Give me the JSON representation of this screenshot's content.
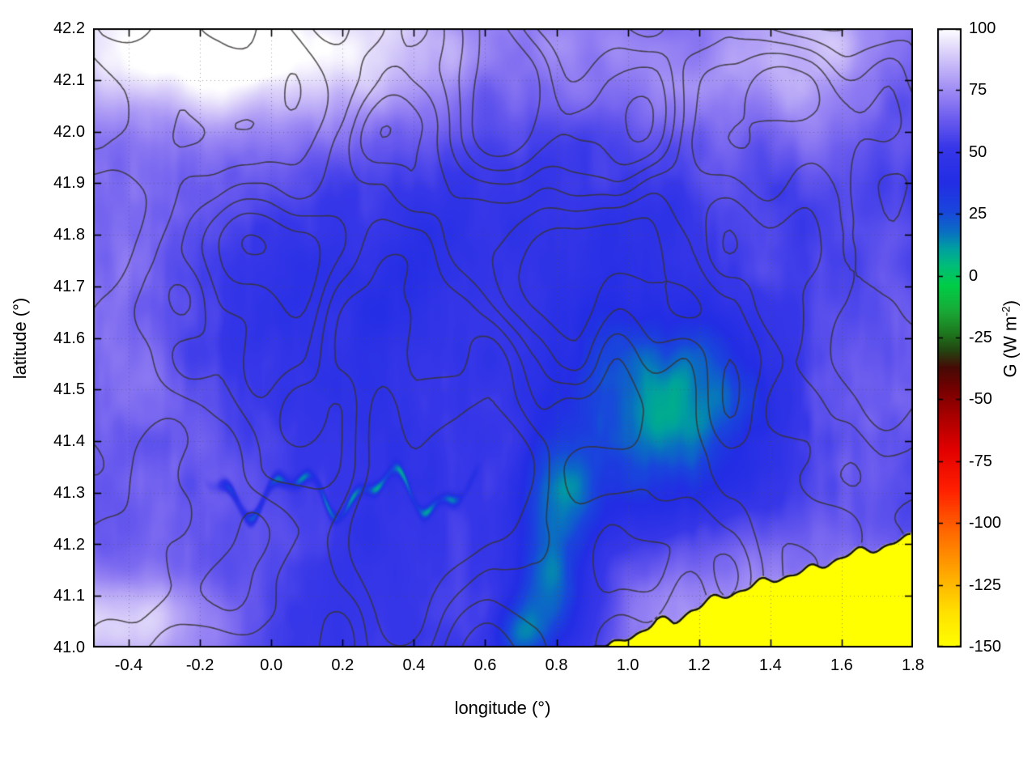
{
  "figure": {
    "title": "",
    "x_axis": {
      "label": "longitude (°)",
      "tick_labels": [
        "-0.4",
        "-0.2",
        "0.0",
        "0.2",
        "0.4",
        "0.6",
        "0.8",
        "1.0",
        "1.2",
        "1.4",
        "1.6",
        "1.8"
      ]
    },
    "y_axis": {
      "label": "latitude (°)",
      "tick_labels": [
        "41.0",
        "41.1",
        "41.2",
        "41.3",
        "41.4",
        "41.5",
        "41.6",
        "41.7",
        "41.8",
        "41.9",
        "42.0",
        "42.1",
        "42.2"
      ]
    },
    "colorbar": {
      "label": "G (W m⁻²)",
      "label_parts": {
        "pre": "G (W m",
        "sup": "-2",
        "post": ")"
      },
      "tick_labels": [
        "100",
        "75",
        "50",
        "25",
        "0",
        "-25",
        "-50",
        "-75",
        "-100",
        "-125",
        "-150"
      ]
    }
  },
  "chart_data": {
    "type": "heatmap",
    "title": "",
    "xlabel": "longitude (°)",
    "ylabel": "latitude (°)",
    "x_range": [
      -0.5,
      1.8
    ],
    "y_range": [
      41.0,
      42.2
    ],
    "x_ticks": [
      -0.4,
      -0.2,
      0.0,
      0.2,
      0.4,
      0.6,
      0.8,
      1.0,
      1.2,
      1.4,
      1.6,
      1.8
    ],
    "y_ticks": [
      41.0,
      41.1,
      41.2,
      41.3,
      41.4,
      41.5,
      41.6,
      41.7,
      41.8,
      41.9,
      42.0,
      42.1,
      42.2
    ],
    "grid": true,
    "grid_style": "dotted gray at every major tick",
    "colorbar": {
      "label": "G (W m⁻²)",
      "range": [
        -150,
        100
      ],
      "ticks": [
        100,
        75,
        50,
        25,
        0,
        -25,
        -50,
        -75,
        -100,
        -125,
        -150
      ],
      "palette_stops": [
        {
          "v": -150,
          "rgb": [
            255,
            255,
            0
          ]
        },
        {
          "v": -136,
          "rgb": [
            255,
            225,
            0
          ]
        },
        {
          "v": -118,
          "rgb": [
            255,
            160,
            0
          ]
        },
        {
          "v": -101,
          "rgb": [
            255,
            95,
            0
          ]
        },
        {
          "v": -86,
          "rgb": [
            255,
            30,
            0
          ]
        },
        {
          "v": -70,
          "rgb": [
            225,
            0,
            0
          ]
        },
        {
          "v": -57,
          "rgb": [
            170,
            0,
            0
          ]
        },
        {
          "v": -46,
          "rgb": [
            118,
            0,
            0
          ]
        },
        {
          "v": -37,
          "rgb": [
            70,
            10,
            5
          ]
        },
        {
          "v": -30,
          "rgb": [
            35,
            70,
            18
          ]
        },
        {
          "v": -23,
          "rgb": [
            30,
            120,
            30
          ]
        },
        {
          "v": -14,
          "rgb": [
            25,
            170,
            55
          ]
        },
        {
          "v": -4,
          "rgb": [
            0,
            205,
            70
          ]
        },
        {
          "v": 4,
          "rgb": [
            0,
            190,
            120
          ]
        },
        {
          "v": 11,
          "rgb": [
            0,
            160,
            160
          ]
        },
        {
          "v": 18,
          "rgb": [
            10,
            110,
            195
          ]
        },
        {
          "v": 26,
          "rgb": [
            25,
            70,
            220
          ]
        },
        {
          "v": 38,
          "rgb": [
            35,
            45,
            228
          ]
        },
        {
          "v": 52,
          "rgb": [
            55,
            55,
            232
          ]
        },
        {
          "v": 63,
          "rgb": [
            105,
            90,
            238
          ]
        },
        {
          "v": 73,
          "rgb": [
            150,
            130,
            243
          ]
        },
        {
          "v": 83,
          "rgb": [
            190,
            175,
            247
          ]
        },
        {
          "v": 92,
          "rgb": [
            224,
            216,
            250
          ]
        },
        {
          "v": 100,
          "rgb": [
            255,
            255,
            255
          ]
        }
      ]
    },
    "overlays": {
      "contours": {
        "color": "#373232",
        "description": "irregular nested terrain-like contour loops in dark gray over the whole land area"
      },
      "coastline": {
        "color": "#141414",
        "points": [
          [
            0.92,
            41.0
          ],
          [
            0.97,
            41.005
          ],
          [
            1.03,
            41.03
          ],
          [
            1.08,
            41.052
          ],
          [
            1.13,
            41.048
          ],
          [
            1.18,
            41.075
          ],
          [
            1.25,
            41.095
          ],
          [
            1.33,
            41.115
          ],
          [
            1.42,
            41.135
          ],
          [
            1.5,
            41.148
          ],
          [
            1.58,
            41.17
          ],
          [
            1.66,
            41.188
          ],
          [
            1.73,
            41.198
          ],
          [
            1.8,
            41.215
          ]
        ]
      },
      "sea_mask": {
        "value": -150,
        "color": "#ffff00",
        "region": "south-east of the coastline (bottom-right corner)"
      }
    },
    "regions": [
      {
        "area": "dominant field over most of the map",
        "value_range": [
          30,
          60
        ],
        "appearance": "blue to blue-violet"
      },
      {
        "area": "western third and northern margins",
        "value_range": [
          60,
          85
        ],
        "appearance": "light violet, patchy"
      },
      {
        "area": "NW corner, SW corner and scattered north-edge patches",
        "value_range": [
          85,
          100
        ],
        "appearance": "near white"
      },
      {
        "area": "thin winding river line near lat 41.3, lon -0.15 to 0.55",
        "value_range": [
          -5,
          15
        ],
        "appearance": "bright green curve"
      },
      {
        "area": "valley cluster lon 0.9-1.45, lat 41.3-41.6 and spots lon 0.7-0.9, lat 41.0-41.35",
        "value_range": [
          5,
          25
        ],
        "appearance": "green-teal"
      },
      {
        "area": "coastal strip just inland of the sea",
        "value_range": [
          60,
          80
        ],
        "appearance": "light violet"
      }
    ]
  }
}
